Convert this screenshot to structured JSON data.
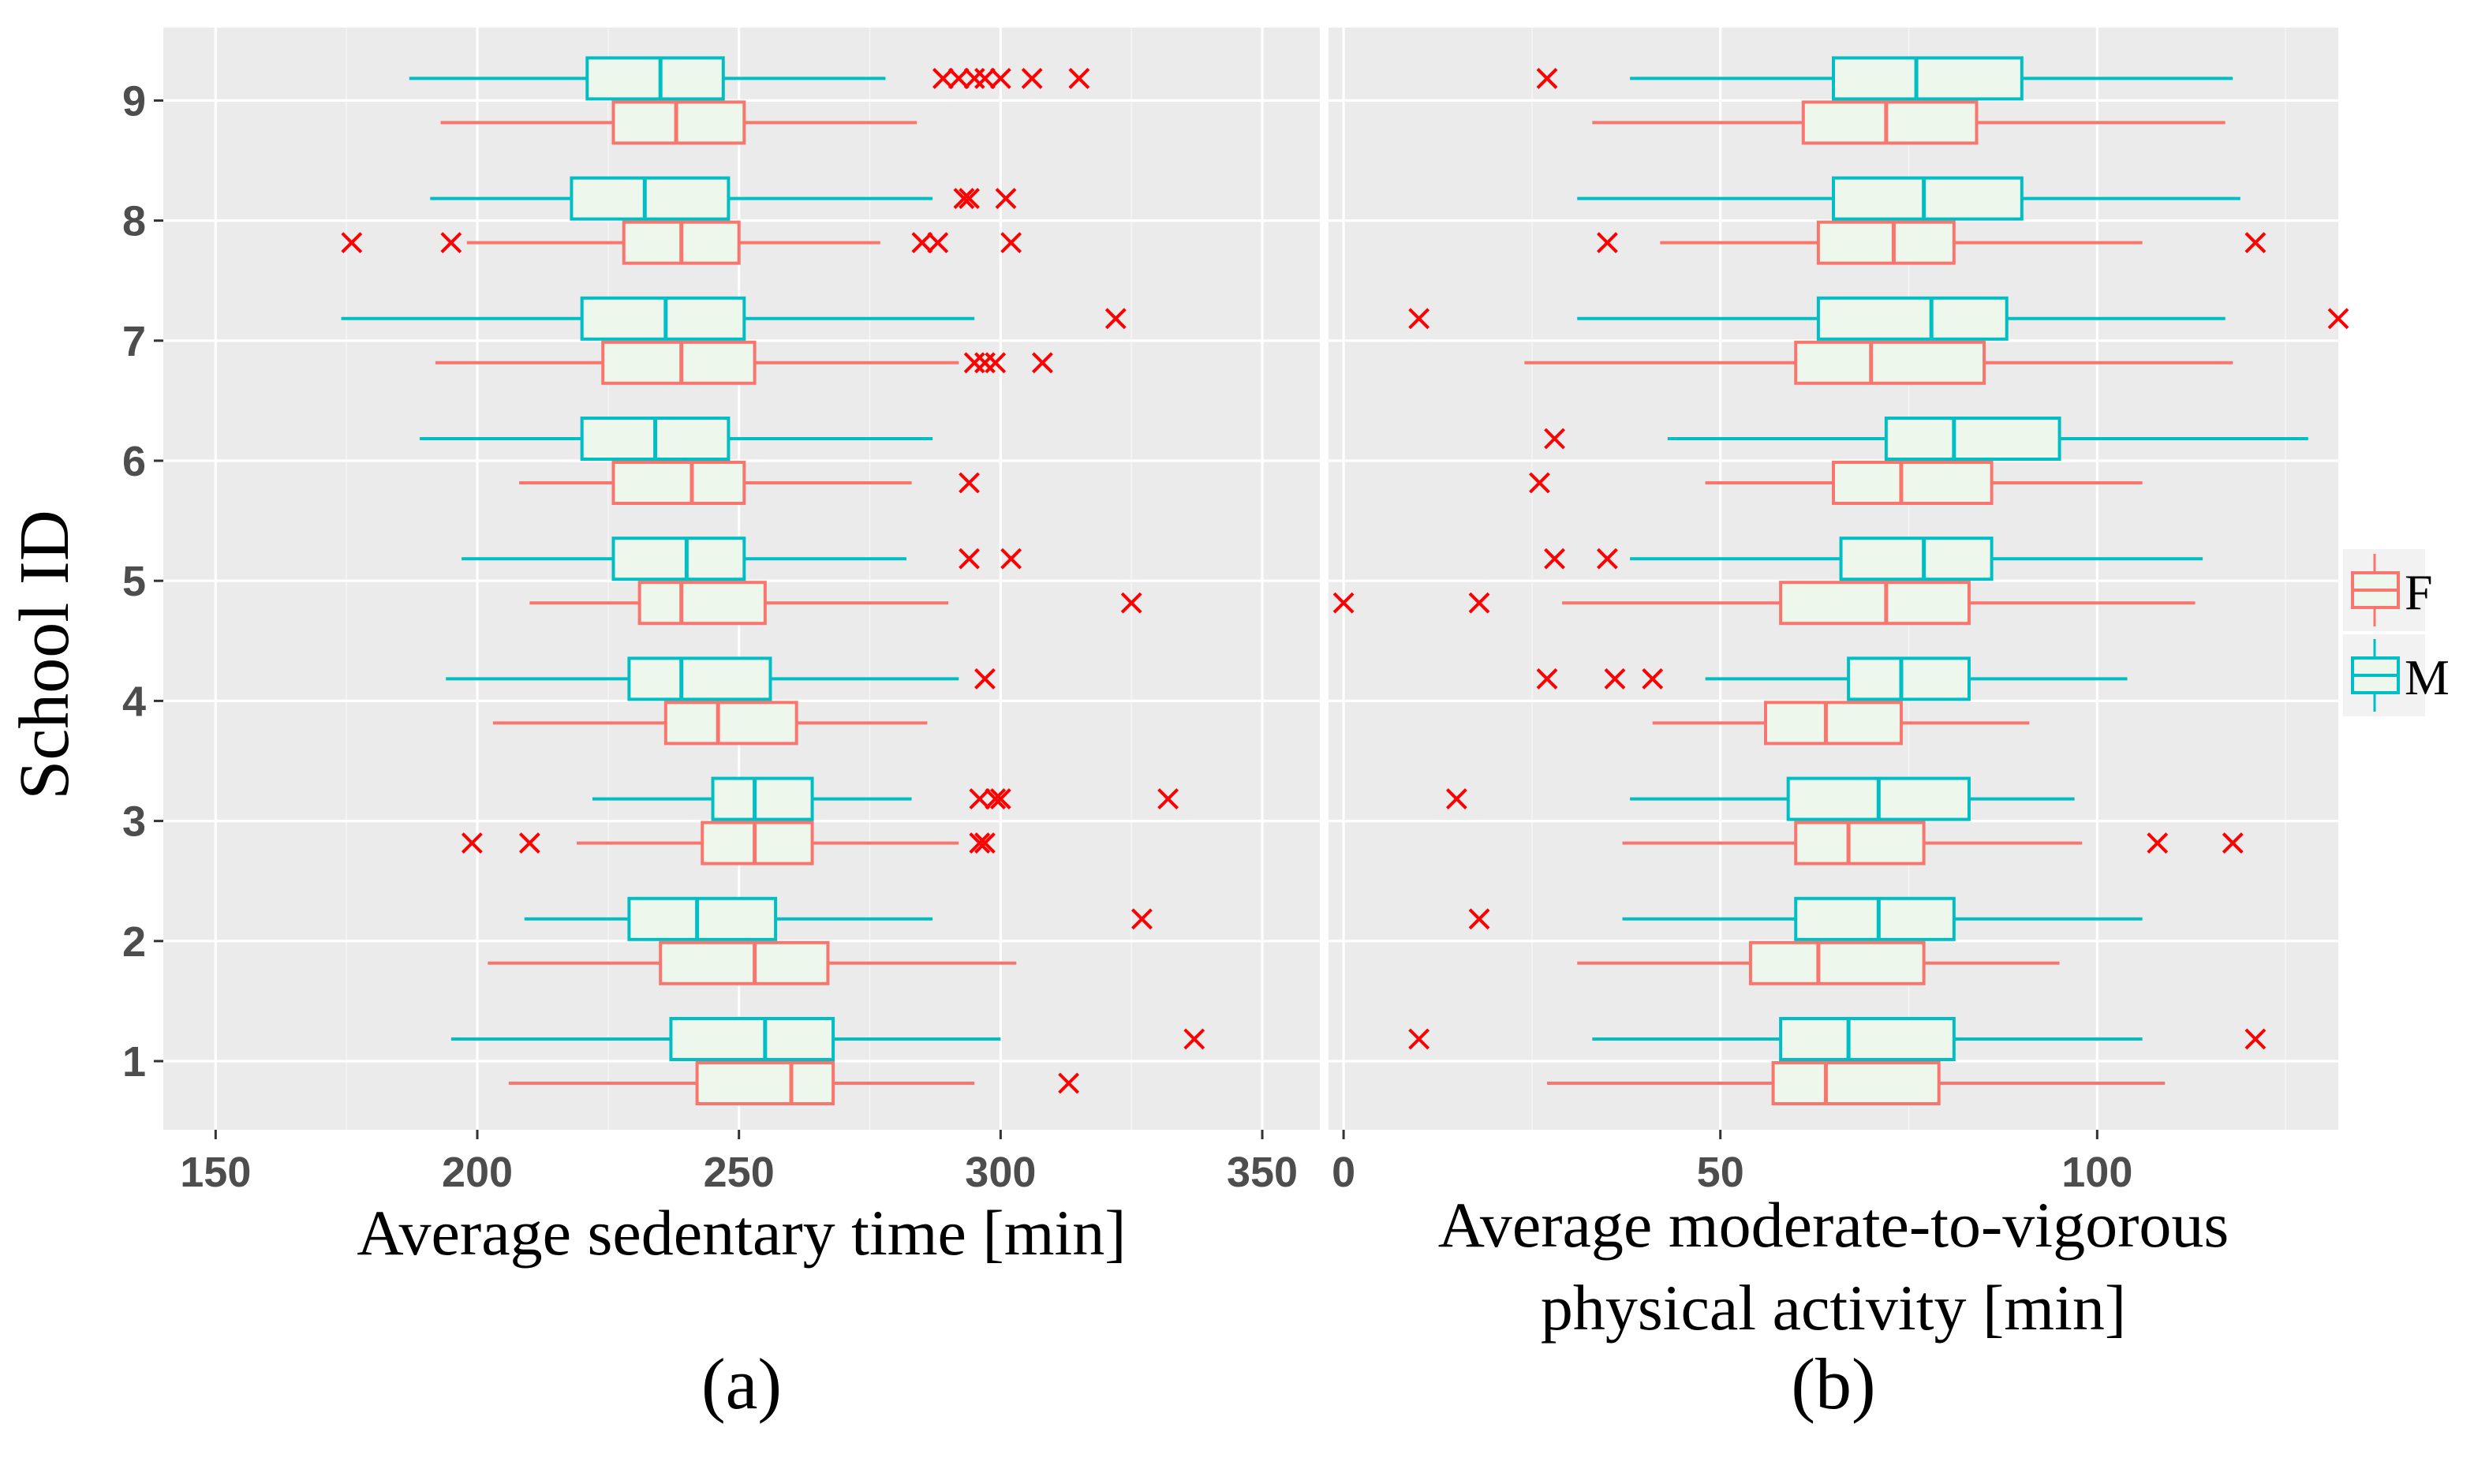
{
  "colors": {
    "F": "#f8766d",
    "M": "#00bfc4",
    "box_fill": "#eef7ec",
    "outlier": "#ff0000",
    "tick_text": "#4d4d4d"
  },
  "legend": {
    "entries": [
      {
        "group": "F",
        "label": "F"
      },
      {
        "group": "M",
        "label": "M"
      }
    ]
  },
  "y_axis": {
    "label": "School ID",
    "ticks": [
      "1",
      "2",
      "3",
      "4",
      "5",
      "6",
      "7",
      "8",
      "9"
    ]
  },
  "chart_data": [
    {
      "type": "boxplot",
      "panel_label": "(a)",
      "xlabel": "Average sedentary time [min]",
      "ylabel": "School ID",
      "xlim": [
        140,
        361
      ],
      "xticks": [
        150,
        200,
        250,
        300,
        350
      ],
      "categories": [
        "1",
        "2",
        "3",
        "4",
        "5",
        "6",
        "7",
        "8",
        "9"
      ],
      "series": [
        {
          "name": "F",
          "boxes": [
            {
              "school": "1",
              "whisker_low": 206,
              "q1": 242,
              "median": 260,
              "q3": 268,
              "whisker_high": 295,
              "outliers": [
                313
              ]
            },
            {
              "school": "2",
              "whisker_low": 202,
              "q1": 235,
              "median": 253,
              "q3": 267,
              "whisker_high": 303,
              "outliers": []
            },
            {
              "school": "3",
              "whisker_low": 219,
              "q1": 243,
              "median": 253,
              "q3": 264,
              "whisker_high": 292,
              "outliers": [
                199,
                210,
                296,
                297
              ]
            },
            {
              "school": "4",
              "whisker_low": 203,
              "q1": 236,
              "median": 246,
              "q3": 261,
              "whisker_high": 286,
              "outliers": []
            },
            {
              "school": "5",
              "whisker_low": 210,
              "q1": 231,
              "median": 239,
              "q3": 255,
              "whisker_high": 290,
              "outliers": [
                325
              ]
            },
            {
              "school": "6",
              "whisker_low": 208,
              "q1": 226,
              "median": 241,
              "q3": 251,
              "whisker_high": 283,
              "outliers": [
                294
              ]
            },
            {
              "school": "7",
              "whisker_low": 192,
              "q1": 224,
              "median": 239,
              "q3": 253,
              "whisker_high": 292,
              "outliers": [
                295,
                297,
                299,
                308
              ]
            },
            {
              "school": "8",
              "whisker_low": 198,
              "q1": 228,
              "median": 239,
              "q3": 250,
              "whisker_high": 277,
              "outliers": [
                176,
                195,
                285,
                288,
                302
              ]
            },
            {
              "school": "9",
              "whisker_low": 193,
              "q1": 226,
              "median": 238,
              "q3": 251,
              "whisker_high": 284,
              "outliers": []
            }
          ]
        },
        {
          "name": "M",
          "boxes": [
            {
              "school": "1",
              "whisker_low": 195,
              "q1": 237,
              "median": 255,
              "q3": 268,
              "whisker_high": 300,
              "outliers": [
                337
              ]
            },
            {
              "school": "2",
              "whisker_low": 209,
              "q1": 229,
              "median": 242,
              "q3": 257,
              "whisker_high": 287,
              "outliers": [
                327
              ]
            },
            {
              "school": "3",
              "whisker_low": 222,
              "q1": 245,
              "median": 253,
              "q3": 264,
              "whisker_high": 283,
              "outliers": [
                296,
                299,
                300,
                332
              ]
            },
            {
              "school": "4",
              "whisker_low": 194,
              "q1": 229,
              "median": 239,
              "q3": 256,
              "whisker_high": 292,
              "outliers": [
                297
              ]
            },
            {
              "school": "5",
              "whisker_low": 197,
              "q1": 226,
              "median": 240,
              "q3": 251,
              "whisker_high": 282,
              "outliers": [
                294,
                302
              ]
            },
            {
              "school": "6",
              "whisker_low": 189,
              "q1": 220,
              "median": 234,
              "q3": 248,
              "whisker_high": 287,
              "outliers": []
            },
            {
              "school": "7",
              "whisker_low": 174,
              "q1": 220,
              "median": 236,
              "q3": 251,
              "whisker_high": 295,
              "outliers": [
                322
              ]
            },
            {
              "school": "8",
              "whisker_low": 191,
              "q1": 218,
              "median": 232,
              "q3": 248,
              "whisker_high": 287,
              "outliers": [
                293,
                294,
                301
              ]
            },
            {
              "school": "9",
              "whisker_low": 187,
              "q1": 221,
              "median": 235,
              "q3": 247,
              "whisker_high": 278,
              "outliers": [
                289,
                292,
                295,
                297,
                300,
                306,
                315
              ]
            }
          ]
        }
      ]
    },
    {
      "type": "boxplot",
      "panel_label": "(b)",
      "xlabel_lines": [
        "Average moderate-to-vigorous",
        "physical activity [min]"
      ],
      "ylabel": "School ID",
      "xlim": [
        -2,
        132
      ],
      "xticks": [
        0,
        50,
        100
      ],
      "categories": [
        "1",
        "2",
        "3",
        "4",
        "5",
        "6",
        "7",
        "8",
        "9"
      ],
      "series": [
        {
          "name": "F",
          "boxes": [
            {
              "school": "1",
              "whisker_low": 27,
              "q1": 57,
              "median": 64,
              "q3": 79,
              "whisker_high": 109,
              "outliers": []
            },
            {
              "school": "2",
              "whisker_low": 31,
              "q1": 54,
              "median": 63,
              "q3": 77,
              "whisker_high": 95,
              "outliers": []
            },
            {
              "school": "3",
              "whisker_low": 37,
              "q1": 60,
              "median": 67,
              "q3": 77,
              "whisker_high": 98,
              "outliers": [
                108,
                118
              ]
            },
            {
              "school": "4",
              "whisker_low": 41,
              "q1": 56,
              "median": 64,
              "q3": 74,
              "whisker_high": 91,
              "outliers": []
            },
            {
              "school": "5",
              "whisker_low": 29,
              "q1": 58,
              "median": 72,
              "q3": 83,
              "whisker_high": 113,
              "outliers": [
                0,
                18
              ]
            },
            {
              "school": "6",
              "whisker_low": 48,
              "q1": 65,
              "median": 74,
              "q3": 86,
              "whisker_high": 106,
              "outliers": [
                26
              ]
            },
            {
              "school": "7",
              "whisker_low": 24,
              "q1": 60,
              "median": 70,
              "q3": 85,
              "whisker_high": 118,
              "outliers": []
            },
            {
              "school": "8",
              "whisker_low": 42,
              "q1": 63,
              "median": 73,
              "q3": 81,
              "whisker_high": 106,
              "outliers": [
                35,
                121
              ]
            },
            {
              "school": "9",
              "whisker_low": 33,
              "q1": 61,
              "median": 72,
              "q3": 84,
              "whisker_high": 117,
              "outliers": []
            }
          ]
        },
        {
          "name": "M",
          "boxes": [
            {
              "school": "1",
              "whisker_low": 33,
              "q1": 58,
              "median": 67,
              "q3": 81,
              "whisker_high": 106,
              "outliers": [
                10,
                121
              ]
            },
            {
              "school": "2",
              "whisker_low": 37,
              "q1": 60,
              "median": 71,
              "q3": 81,
              "whisker_high": 106,
              "outliers": [
                18
              ]
            },
            {
              "school": "3",
              "whisker_low": 38,
              "q1": 59,
              "median": 71,
              "q3": 83,
              "whisker_high": 97,
              "outliers": [
                15
              ]
            },
            {
              "school": "4",
              "whisker_low": 48,
              "q1": 67,
              "median": 74,
              "q3": 83,
              "whisker_high": 104,
              "outliers": [
                27,
                36,
                41
              ]
            },
            {
              "school": "5",
              "whisker_low": 38,
              "q1": 66,
              "median": 77,
              "q3": 86,
              "whisker_high": 114,
              "outliers": [
                28,
                35
              ]
            },
            {
              "school": "6",
              "whisker_low": 43,
              "q1": 72,
              "median": 81,
              "q3": 95,
              "whisker_high": 128,
              "outliers": [
                28
              ]
            },
            {
              "school": "7",
              "whisker_low": 31,
              "q1": 63,
              "median": 78,
              "q3": 88,
              "whisker_high": 117,
              "outliers": [
                10,
                132
              ]
            },
            {
              "school": "8",
              "whisker_low": 31,
              "q1": 65,
              "median": 77,
              "q3": 90,
              "whisker_high": 119,
              "outliers": []
            },
            {
              "school": "9",
              "whisker_low": 38,
              "q1": 65,
              "median": 76,
              "q3": 90,
              "whisker_high": 118,
              "outliers": [
                27
              ]
            }
          ]
        }
      ]
    }
  ]
}
